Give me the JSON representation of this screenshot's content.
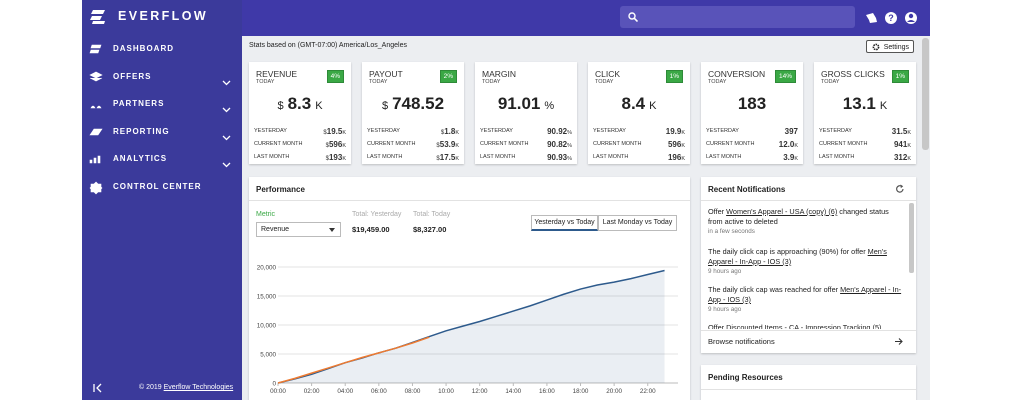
{
  "brand": "EVERFLOW",
  "nav": [
    "DASHBOARD",
    "OFFERS",
    "PARTNERS",
    "REPORTING",
    "ANALYTICS",
    "CONTROL CENTER"
  ],
  "footer": {
    "copyright": "© 2019",
    "link": "Everflow Technologies"
  },
  "stats_note": "Stats based on (GMT-07:00) America/Los_Angeles",
  "settings_button": "Settings",
  "cards": [
    {
      "title": "REVENUE",
      "period": "TODAY",
      "badge": "4%",
      "prefix": "$",
      "value": "8.3",
      "suffix": "K",
      "rows": [
        {
          "label": "YESTERDAY",
          "prefix": "$",
          "value": "19.5",
          "suffix": "K"
        },
        {
          "label": "CURRENT MONTH",
          "prefix": "$",
          "value": "596",
          "suffix": "K"
        },
        {
          "label": "LAST MONTH",
          "prefix": "$",
          "value": "193",
          "suffix": "K"
        }
      ]
    },
    {
      "title": "PAYOUT",
      "period": "TODAY",
      "badge": "2%",
      "prefix": "$",
      "value": "748.52",
      "rows": [
        {
          "label": "YESTERDAY",
          "prefix": "$",
          "value": "1.8",
          "suffix": "K"
        },
        {
          "label": "CURRENT MONTH",
          "prefix": "$",
          "value": "53.9",
          "suffix": "K"
        },
        {
          "label": "LAST MONTH",
          "prefix": "$",
          "value": "17.5",
          "suffix": "K"
        }
      ]
    },
    {
      "title": "MARGIN",
      "period": "TODAY",
      "value": "91.01",
      "suffix": "%",
      "rows": [
        {
          "label": "YESTERDAY",
          "value": "90.92",
          "suffix": "%"
        },
        {
          "label": "CURRENT MONTH",
          "value": "90.82",
          "suffix": "%"
        },
        {
          "label": "LAST MONTH",
          "value": "90.93",
          "suffix": "%"
        }
      ]
    },
    {
      "title": "CLICK",
      "period": "TODAY",
      "badge": "1%",
      "value": "8.4",
      "suffix": "K",
      "rows": [
        {
          "label": "YESTERDAY",
          "value": "19.9",
          "suffix": "K"
        },
        {
          "label": "CURRENT MONTH",
          "value": "596",
          "suffix": "K"
        },
        {
          "label": "LAST MONTH",
          "value": "196",
          "suffix": "K"
        }
      ]
    },
    {
      "title": "CONVERSION",
      "period": "TODAY",
      "badge": "14%",
      "value": "183",
      "rows": [
        {
          "label": "YESTERDAY",
          "value": "397"
        },
        {
          "label": "CURRENT MONTH",
          "value": "12.0",
          "suffix": "K"
        },
        {
          "label": "LAST MONTH",
          "value": "3.9",
          "suffix": "K"
        }
      ]
    },
    {
      "title": "GROSS CLICKS",
      "period": "TODAY",
      "badge": "1%",
      "value": "13.1",
      "suffix": "K",
      "rows": [
        {
          "label": "YESTERDAY",
          "value": "31.5",
          "suffix": "K"
        },
        {
          "label": "CURRENT MONTH",
          "value": "941",
          "suffix": "K"
        },
        {
          "label": "LAST MONTH",
          "value": "312",
          "suffix": "K"
        }
      ]
    }
  ],
  "performance": {
    "title": "Performance",
    "metric_label": "Metric",
    "metric_select": "Revenue",
    "totals": [
      {
        "label": "Total: Yesterday",
        "value": "$19,459.00"
      },
      {
        "label": "Total: Today",
        "value": "$8,327.00"
      }
    ],
    "compare_buttons": [
      "Yesterday vs Today",
      "Last Monday vs Today"
    ],
    "chart_data": {
      "type": "line",
      "x": [
        0,
        1,
        2,
        3,
        4,
        5,
        6,
        7,
        8,
        9,
        10,
        11,
        12,
        13,
        14,
        15,
        16,
        17,
        18,
        19,
        20,
        21,
        22,
        23
      ],
      "series": [
        {
          "color": "#2d5a8c",
          "area": true,
          "values": [
            0,
            700,
            1500,
            2500,
            3500,
            4300,
            5200,
            6000,
            7000,
            8000,
            9000,
            9800,
            10600,
            11500,
            12400,
            13300,
            14300,
            15300,
            16200,
            16900,
            17400,
            18000,
            18700,
            19400
          ]
        },
        {
          "color": "#ee7a30",
          "values": [
            0,
            800,
            1700,
            2600,
            3500,
            4400,
            5200,
            6000,
            6900,
            7900,
            null,
            null,
            null,
            null,
            null,
            null,
            null,
            null,
            null,
            null,
            null,
            null,
            null,
            null
          ]
        }
      ],
      "xlim": [
        0,
        23.8
      ],
      "xticks": [
        {
          "value": 0,
          "label": "00:00"
        },
        {
          "value": 2,
          "label": "02:00"
        },
        {
          "value": 4,
          "label": "04:00"
        },
        {
          "value": 6,
          "label": "06:00"
        },
        {
          "value": 8,
          "label": "08:00"
        },
        {
          "value": 10,
          "label": "10:00"
        },
        {
          "value": 12,
          "label": "12:00"
        },
        {
          "value": 14,
          "label": "14:00"
        },
        {
          "value": 16,
          "label": "16:00"
        },
        {
          "value": 18,
          "label": "18:00"
        },
        {
          "value": 20,
          "label": "20:00"
        },
        {
          "value": 22,
          "label": "22:00"
        }
      ],
      "ylim": [
        0,
        20000
      ],
      "yticks": [
        0,
        {
          "value": 5000,
          "label": "5,000"
        },
        {
          "value": 10000,
          "label": "10,000"
        },
        {
          "value": 15000,
          "label": "15,000"
        },
        {
          "value": 20000,
          "label": "20,000"
        }
      ],
      "grid": true
    }
  },
  "notifications": {
    "title": "Recent Notifications",
    "items": [
      {
        "prefix": "Offer ",
        "link": "Women's Apparel - USA (copy) (6)",
        "suffix": " changed status from active to deleted",
        "time": "in a few seconds"
      },
      {
        "prefix": "The daily click cap is approaching (90%) for offer ",
        "link": "Men's Apparel - In-App - IOS (3)",
        "time": "9 hours ago"
      },
      {
        "prefix": "The daily click cap was reached for offer ",
        "link": "Men's Apparel - In-App - IOS (3)",
        "time": "9 hours ago"
      },
      {
        "prefix": "Offer ",
        "link": "Discounted Items - CA - Impression Tracking (5)"
      }
    ],
    "browse": "Browse notifications"
  },
  "pending": {
    "title": "Pending Resources"
  }
}
